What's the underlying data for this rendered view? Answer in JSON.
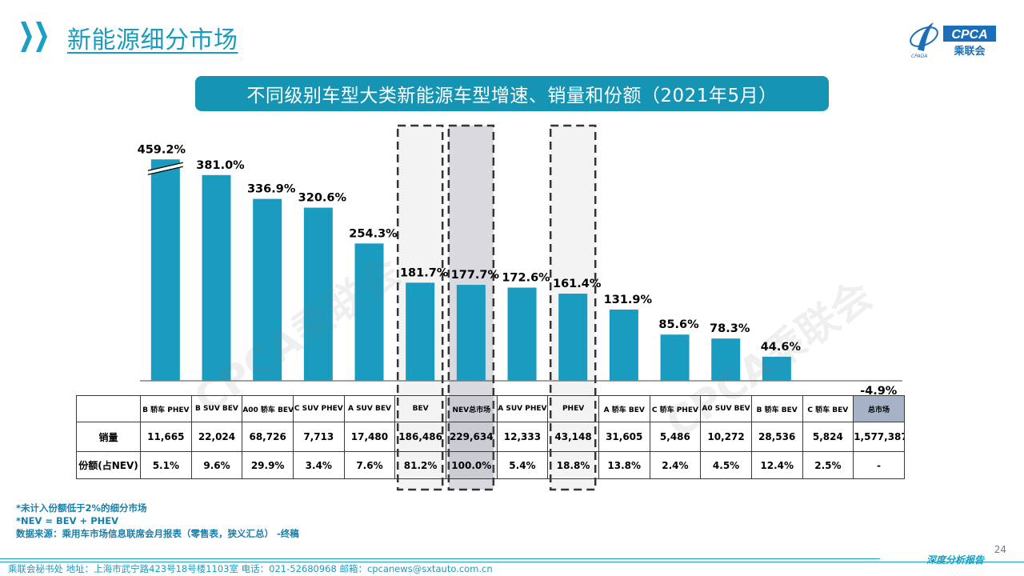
{
  "header": {
    "title": "新能源细分市场",
    "logo_text": "CPCA",
    "logo_sub": "乘联会",
    "logo_small": "CPADA"
  },
  "subtitle": "不同级别车型大类新能源车型增速、销量和份额（2021年5月）",
  "chart_data": {
    "type": "bar",
    "title": "不同级别车型大类新能源车型增速、销量和份额（2021年5月）",
    "categories": [
      "B 轿车 PHEV",
      "B SUV BEV",
      "A00 轿车 BEV",
      "C SUV PHEV",
      "A SUV BEV",
      "BEV",
      "NEV总市场",
      "A SUV PHEV",
      "PHEV",
      "A 轿车 BEV",
      "C 轿车 PHEV",
      "A0 SUV BEV",
      "B 轿车 BEV",
      "C 轿车 BEV",
      "总市场"
    ],
    "values": [
      459.2,
      381.0,
      336.9,
      320.6,
      254.3,
      181.7,
      177.7,
      172.6,
      161.4,
      131.9,
      85.6,
      78.3,
      44.6,
      null,
      -4.9
    ],
    "value_labels": [
      "459.2%",
      "381.0%",
      "336.9%",
      "320.6%",
      "254.3%",
      "181.7%",
      "177.7%",
      "172.6%",
      "161.4%",
      "131.9%",
      "85.6%",
      "78.3%",
      "44.6%",
      "",
      "-4.9%"
    ],
    "axis_break_on_first_bar": true,
    "ylim": [
      0,
      410
    ],
    "unit": "%",
    "highlighted": [
      "BEV",
      "NEV总市场",
      "PHEV"
    ],
    "xlabel": "",
    "ylabel": "",
    "bar_color": "#1a9cc0"
  },
  "table": {
    "header_row": [
      "B 轿车 PHEV",
      "B SUV BEV",
      "A00 轿车 BEV",
      "C SUV PHEV",
      "A SUV BEV",
      "BEV",
      "NEV总市场",
      "A SUV PHEV",
      "PHEV",
      "A 轿车 BEV",
      "C 轿车 PHEV",
      "A0 SUV BEV",
      "B 轿车 BEV",
      "C 轿车 BEV",
      "总市场"
    ],
    "sales_label": "销量",
    "sales": [
      "11,665",
      "22,024",
      "68,726",
      "7,713",
      "17,480",
      "186,486",
      "229,634",
      "12,333",
      "43,148",
      "31,605",
      "5,486",
      "10,272",
      "28,536",
      "5,824",
      "1,577,387"
    ],
    "share_label": "份额(占NEV)",
    "shares": [
      "5.1%",
      "9.6%",
      "29.9%",
      "3.4%",
      "7.6%",
      "81.2%",
      "100.0%",
      "5.4%",
      "18.8%",
      "13.8%",
      "2.4%",
      "4.5%",
      "12.4%",
      "2.5%",
      "-"
    ]
  },
  "notes": {
    "line1": "*未计入份额低于2%的细分市场",
    "line2": "*NEV = BEV + PHEV",
    "line3": "数据来源：乘用车市场信息联席会月报表（零售表，狭义汇总） -终稿"
  },
  "footer": {
    "text": "乘联会秘书处   地址：上海市武宁路423号18号楼1103室   电话：021-52680968   邮箱：cpcanews@sxtauto.com.cn",
    "right": "深度分析报告",
    "page": "24"
  },
  "watermark": "CPCA乘联会",
  "colors": {
    "accent": "#1a9cbe",
    "banner": "#1694b3",
    "bar": "#1a9cc0",
    "chevron": "#1b9fc4",
    "total_header": "#a6b3c6"
  }
}
